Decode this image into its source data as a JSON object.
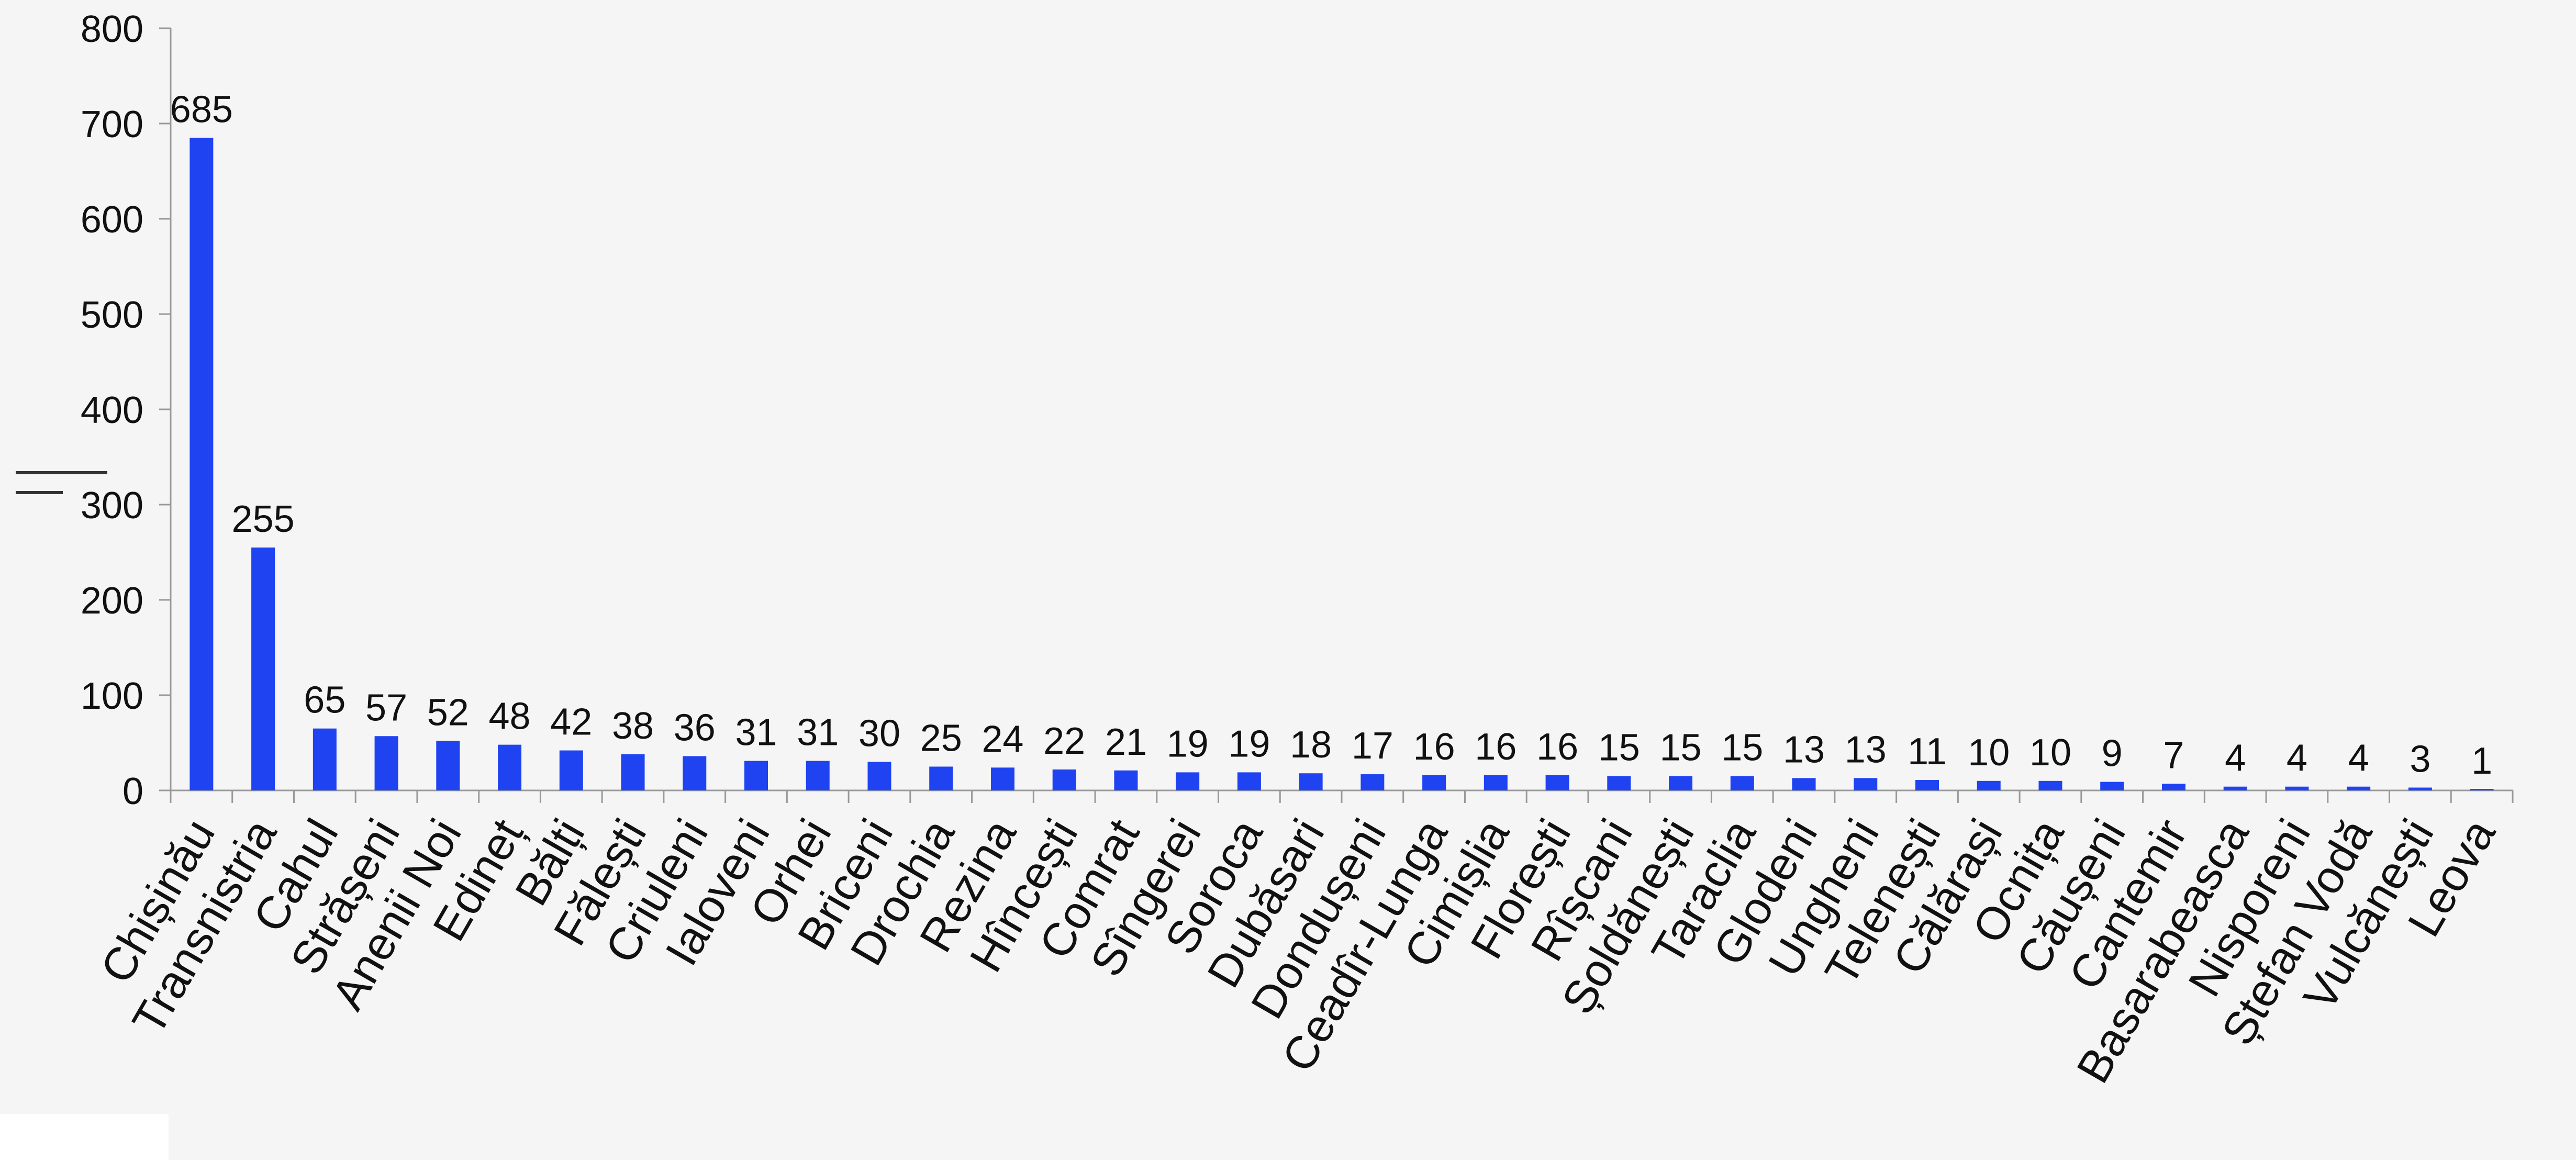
{
  "chart_data": {
    "type": "bar",
    "categories": [
      "Chișinău",
      "Transnistria",
      "Cahul",
      "Strășeni",
      "Anenii Noi",
      "Edineț",
      "Bălți",
      "Fălești",
      "Criuleni",
      "Ialoveni",
      "Orhei",
      "Briceni",
      "Drochia",
      "Rezina",
      "Hîncești",
      "Comrat",
      "Sîngerei",
      "Soroca",
      "Dubăsari",
      "Dondușeni",
      "Ceadîr-Lunga",
      "Cimișlia",
      "Florești",
      "Rîșcani",
      "Șoldănești",
      "Taraclia",
      "Glodeni",
      "Ungheni",
      "Telenești",
      "Călărași",
      "Ocnița",
      "Căușeni",
      "Cantemir",
      "Basarabeasca",
      "Nisporeni",
      "Ștefan Vodă",
      "Vulcănești",
      "Leova"
    ],
    "values": [
      685,
      255,
      65,
      57,
      52,
      48,
      42,
      38,
      36,
      31,
      31,
      30,
      25,
      24,
      22,
      21,
      19,
      19,
      18,
      17,
      16,
      16,
      16,
      15,
      15,
      15,
      13,
      13,
      11,
      10,
      10,
      9,
      7,
      4,
      4,
      4,
      3,
      1
    ],
    "ylim": [
      0,
      800
    ],
    "yticks": [
      "0",
      "100",
      "200",
      "300",
      "400",
      "500",
      "600",
      "700",
      "800"
    ],
    "title": "",
    "xlabel": "",
    "ylabel": "",
    "grid": false,
    "colors": {
      "bar": "#2043f2",
      "axis": "#999999",
      "text": "#111111",
      "background": "#f5f5f5"
    }
  }
}
